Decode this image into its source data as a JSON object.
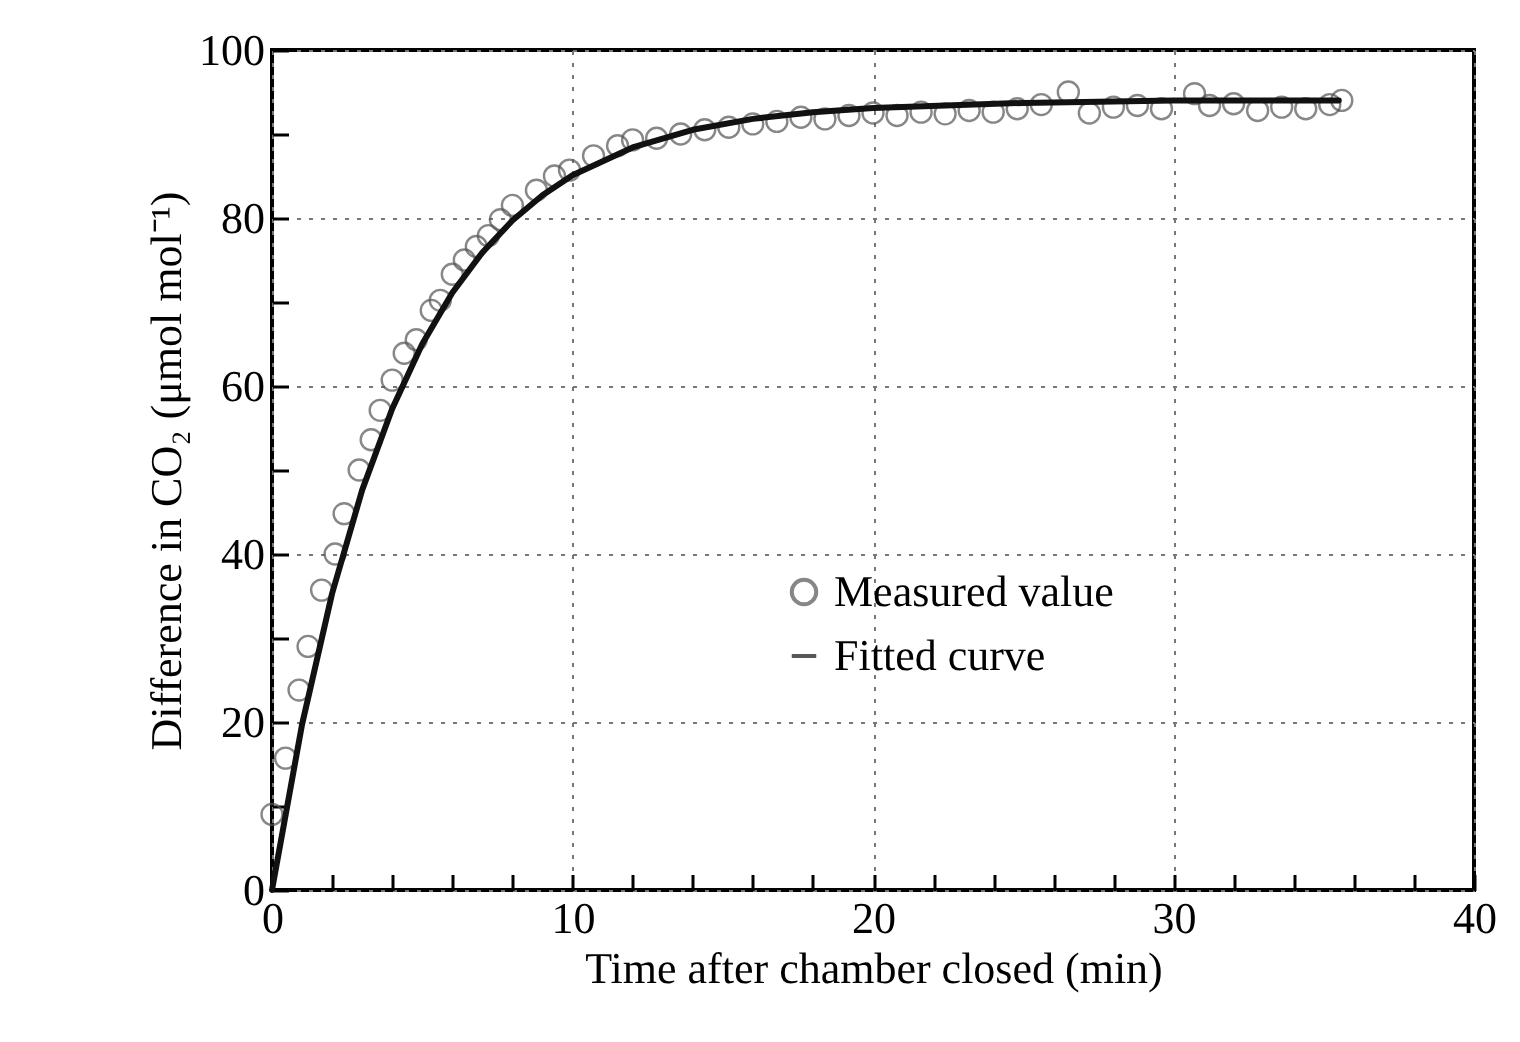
{
  "chart_data": {
    "type": "scatter",
    "xlabel": "Time after chamber closed (min)",
    "ylabel": "Difference in CO₂ (μmol mol⁻¹)",
    "xlim": [
      0,
      40
    ],
    "ylim": [
      0,
      100
    ],
    "xticks": [
      0,
      {
        "value": 2,
        "label": null
      },
      {
        "value": 4,
        "label": null
      },
      {
        "value": 6,
        "label": null
      },
      {
        "value": 8,
        "label": null
      },
      10,
      {
        "value": 12,
        "label": null
      },
      {
        "value": 14,
        "label": null
      },
      {
        "value": 16,
        "label": null
      },
      {
        "value": 18,
        "label": null
      },
      20,
      {
        "value": 22,
        "label": null
      },
      {
        "value": 24,
        "label": null
      },
      {
        "value": 26,
        "label": null
      },
      {
        "value": 28,
        "label": null
      },
      30,
      {
        "value": 32,
        "label": null
      },
      {
        "value": 34,
        "label": null
      },
      {
        "value": 36,
        "label": null
      },
      {
        "value": 38,
        "label": null
      },
      40
    ],
    "yticks": [
      0,
      {
        "value": 10,
        "label": null
      },
      20,
      {
        "value": 30,
        "label": null
      },
      40,
      {
        "value": 50,
        "label": null
      },
      60,
      {
        "value": 70,
        "label": null
      },
      80,
      {
        "value": 90,
        "label": null
      },
      100
    ],
    "grid": true,
    "legend": "right",
    "series": [
      {
        "name": "Measured value",
        "type": "scatter",
        "marker": "circle",
        "color": "#555555",
        "x": [
          0,
          0.45,
          0.9,
          1.2,
          1.65,
          2.1,
          2.4,
          2.9,
          3.3,
          3.6,
          4.0,
          4.4,
          4.8,
          5.3,
          5.6,
          6.0,
          6.4,
          6.8,
          7.2,
          7.6,
          8.0,
          8.8,
          9.4,
          9.9,
          10.7,
          11.5,
          12.0,
          12.8,
          13.6,
          14.4,
          15.2,
          16.0,
          16.8,
          17.6,
          18.4,
          19.2,
          20.0,
          20.8,
          21.6,
          22.4,
          23.2,
          24.0,
          24.8,
          25.6,
          26.5,
          27.2,
          28.0,
          28.8,
          29.6,
          30.7,
          31.2,
          32.0,
          32.8,
          33.6,
          34.4,
          35.2,
          35.6
        ],
        "values": [
          9,
          15.7,
          23.8,
          29,
          35.7,
          40,
          44.8,
          50,
          53.6,
          57.1,
          60.7,
          63.9,
          65.5,
          69,
          70.2,
          73.3,
          75,
          76.6,
          77.9,
          79.8,
          81.5,
          83.3,
          85,
          85.7,
          87.4,
          88.6,
          89.3,
          89.5,
          90,
          90.5,
          90.8,
          91.2,
          91.5,
          92,
          91.8,
          92.2,
          92.5,
          92.2,
          92.6,
          92.4,
          92.8,
          92.6,
          93,
          93.5,
          95,
          92.5,
          93.2,
          93.4,
          93,
          94.8,
          93.4,
          93.6,
          92.8,
          93.2,
          93,
          93.5,
          94
        ]
      },
      {
        "name": "Fitted curve",
        "type": "line",
        "color": "#111111",
        "line_style": "solid",
        "x": [
          0,
          1,
          2,
          3,
          4,
          5,
          6,
          7,
          8,
          9,
          10,
          12,
          14,
          16,
          18,
          20,
          25,
          30,
          35.5
        ],
        "values": [
          0,
          19.7,
          35.3,
          47.6,
          57.3,
          65,
          71.1,
          75.9,
          79.7,
          82.7,
          85.1,
          88.4,
          90.5,
          91.8,
          92.6,
          93.1,
          93.7,
          94,
          94
        ]
      }
    ]
  }
}
